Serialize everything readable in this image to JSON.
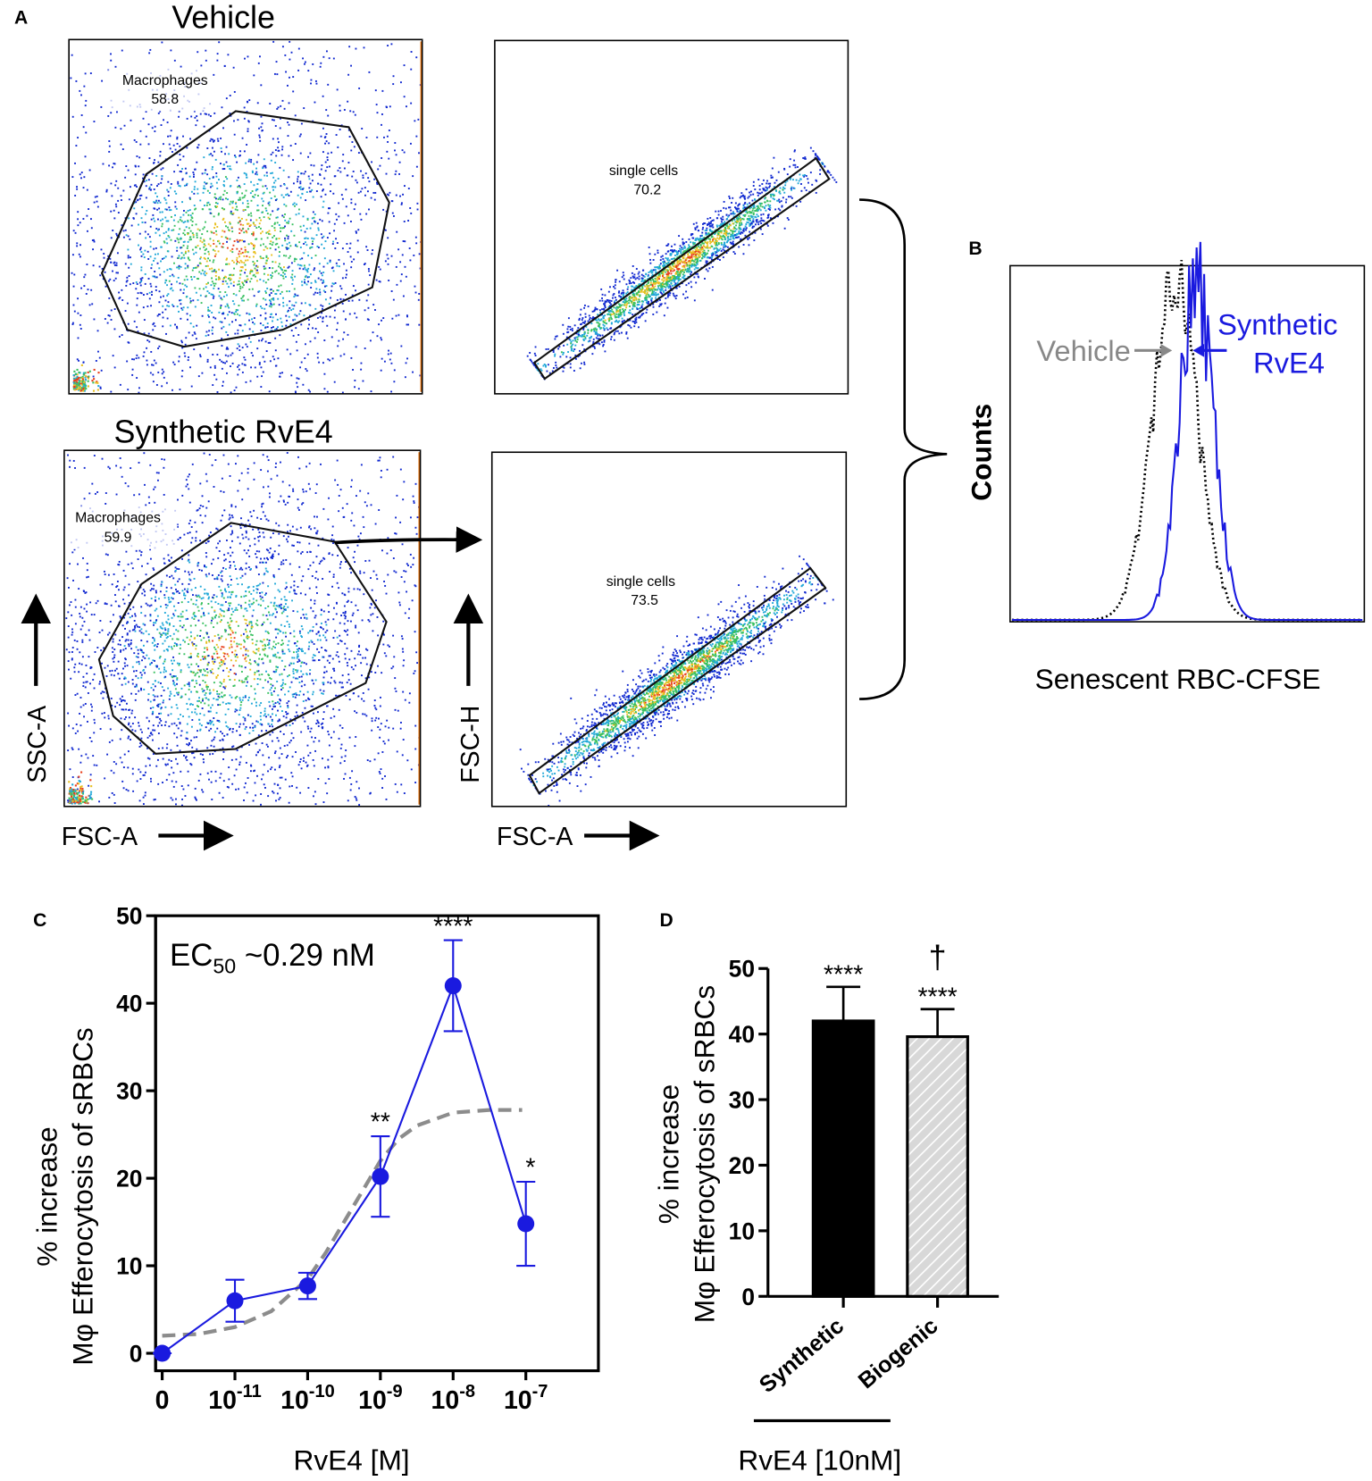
{
  "panel_a": {
    "label": "A",
    "plots": [
      {
        "title": "Vehicle",
        "gate": "Macrophages",
        "gate_value": 58.8,
        "single": "single cells",
        "single_value": 70.2
      },
      {
        "title": "Synthetic RvE4",
        "gate": "Macrophages",
        "gate_value": 59.9,
        "single": "single cells",
        "single_value": 73.5
      }
    ],
    "x_labels": [
      "FSC-A",
      "FSC-A"
    ],
    "y_labels": [
      "SSC-A",
      "FSC-H"
    ]
  },
  "panel_b": {
    "label": "B",
    "y_label": "Counts",
    "x_label": "Senescent RBC-CFSE",
    "legend": [
      {
        "text": "Vehicle",
        "color": "#888888"
      },
      {
        "text": [
          "Synthetic",
          "RvE4"
        ],
        "color": "#1a1adf"
      }
    ]
  },
  "chart_data": [
    {
      "type": "line",
      "panel": "C",
      "annotation": {
        "main": "EC",
        "sub": "50",
        "rest": " ~0.29 nM"
      },
      "ylabel": [
        "% increase",
        "Mφ Efferocytosis of sRBCs"
      ],
      "xlabel": "RvE4 [M]",
      "categories": [
        "0",
        {
          "base": "10",
          "exp": "-11"
        },
        {
          "base": "10",
          "exp": "-10"
        },
        {
          "base": "10",
          "exp": "-9"
        },
        {
          "base": "10",
          "exp": "-8"
        },
        {
          "base": "10",
          "exp": "-7"
        }
      ],
      "series": [
        {
          "name": "Synthetic RvE4",
          "color": "#1a1adf",
          "values": [
            0,
            6,
            7.7,
            20.2,
            42,
            14.8
          ],
          "errors": [
            0,
            2.4,
            1.5,
            4.6,
            5.2,
            4.8
          ]
        }
      ],
      "significance": [
        {
          "index": 3,
          "text": "**"
        },
        {
          "index": 4,
          "text": "****"
        },
        {
          "index": 5,
          "text": "*"
        }
      ],
      "fit": {
        "color": "#8c8c8c",
        "x": [
          0,
          0.5,
          1,
          1.5,
          2,
          2.25,
          2.5,
          2.75,
          3,
          3.25,
          3.5,
          4,
          4.5,
          4.95
        ],
        "values": [
          2,
          2.2,
          3,
          4.8,
          8.5,
          11.5,
          15,
          18.5,
          22,
          24.5,
          26,
          27.5,
          27.8,
          27.8
        ]
      },
      "ylim": [
        -2,
        50
      ],
      "yticks": [
        0,
        10,
        20,
        30,
        40,
        50
      ]
    },
    {
      "type": "bar",
      "panel": "D",
      "ylabel": [
        "% increase",
        "Mφ Efferocytosis of sRBCs"
      ],
      "xlabel": "RvE4 [10nM]",
      "categories": [
        "Synthetic",
        "Biogenic"
      ],
      "values": [
        42,
        39.6
      ],
      "errors": [
        5.2,
        4.2
      ],
      "colors": [
        "#000000",
        "#d8d8d8"
      ],
      "significance": [
        "****",
        "****"
      ],
      "extra_mark": {
        "index": 1,
        "text": "†"
      },
      "ylim": [
        0,
        50
      ],
      "yticks": [
        0,
        10,
        20,
        30,
        40,
        50
      ]
    }
  ]
}
